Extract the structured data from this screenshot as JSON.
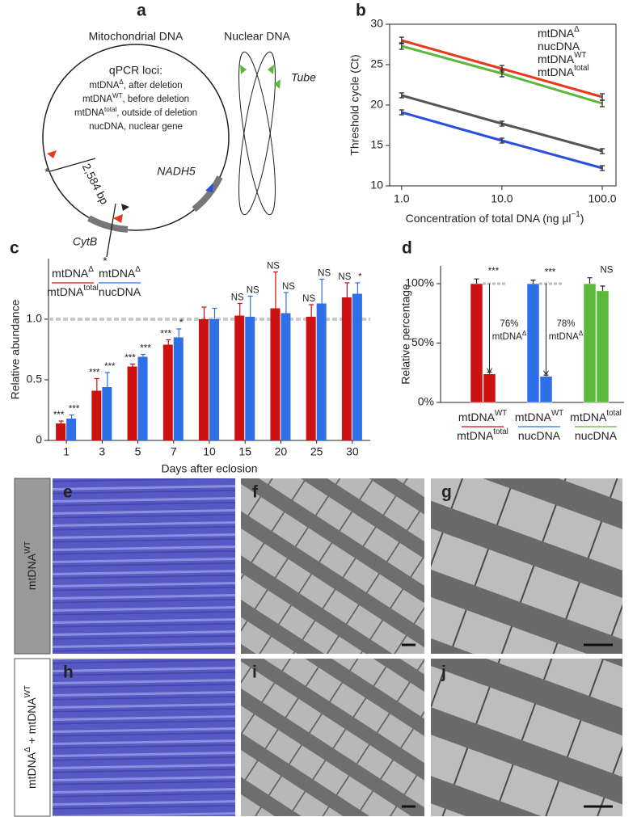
{
  "diagram": {
    "label": "a",
    "mito_title": "Mitochondrial DNA",
    "nuclear_title": "Nuclear DNA",
    "loci_title": "qPCR loci:",
    "loci": [
      {
        "base": "mtDNA",
        "sup": "Δ",
        "desc": ", after deletion",
        "color": "#e8381e"
      },
      {
        "base": "mtDNA",
        "sup": "WT",
        "desc": ", before deletion",
        "color": "#222222"
      },
      {
        "base": "mtDNA",
        "sup": "total",
        "desc": ", outside of deletion",
        "color": "#2a4fe0"
      },
      {
        "base": "nucDNA",
        "desc": ", nuclear gene",
        "color": "#5cb83a"
      }
    ],
    "deletion": "2,584 bp",
    "breakpoint": "*",
    "genes": [
      "CytB",
      "NADH5",
      "Tube"
    ]
  },
  "chart_data": [
    {
      "type": "line",
      "label": "b",
      "ylabel": "Threshold cycle (Ct)",
      "xlabel": {
        "base": "Concentration of total DNA (ng µl",
        "sup": "−1",
        "tail": ")"
      },
      "x": [
        1,
        10,
        100
      ],
      "xscale": "log",
      "xlim": [
        0.76,
        137
      ],
      "xticks": [
        {
          "value": 1,
          "label": "1.0"
        },
        {
          "value": 10,
          "label": "10.0"
        },
        {
          "value": 100,
          "label": "100.0"
        }
      ],
      "ylim": [
        10,
        30
      ],
      "yticks": [
        10,
        15,
        20,
        25,
        30
      ],
      "series": [
        {
          "name": "mtDNA",
          "name_sup": "Δ",
          "color": "#e8381e",
          "values": [
            28.0,
            24.5,
            21.0
          ],
          "errors": [
            0.4,
            0.4,
            0.4
          ]
        },
        {
          "name": "nucDNA",
          "color": "#5cb83a",
          "values": [
            27.3,
            23.9,
            20.2
          ],
          "errors": [
            0.4,
            0.4,
            0.4
          ]
        },
        {
          "name": "mtDNA",
          "name_sup": "WT",
          "color": "#555555",
          "values": [
            21.2,
            17.7,
            14.3
          ],
          "errors": [
            0.3,
            0.3,
            0.3
          ]
        },
        {
          "name": "mtDNA",
          "name_sup": "total",
          "color": "#2a4fe0",
          "values": [
            19.1,
            15.6,
            12.2
          ],
          "errors": [
            0.3,
            0.3,
            0.3
          ]
        }
      ]
    },
    {
      "type": "bar",
      "label": "c",
      "ylabel": "Relative abundance",
      "xlabel": "Days after eclosion",
      "categories": [
        "1",
        "3",
        "5",
        "7",
        "10",
        "15",
        "20",
        "25",
        "30"
      ],
      "ylim": [
        0,
        1.5
      ],
      "yticks": [
        0,
        0.5,
        {
          "value": 1,
          "label": "1.0"
        }
      ],
      "reference_line": 1,
      "series": [
        {
          "name": {
            "numerator": {
              "base": "mtDNA",
              "sup": "Δ"
            },
            "denominator": {
              "base": "mtDNA",
              "sup": "total"
            }
          },
          "color": "#cc1111",
          "values": [
            0.14,
            0.41,
            0.61,
            0.79,
            1.0,
            1.03,
            1.09,
            1.02,
            1.18
          ],
          "errors": [
            0.02,
            0.1,
            0.02,
            0.04,
            0.1,
            0.1,
            0.3,
            0.1,
            0.12
          ],
          "significance": [
            "***",
            "***",
            "***",
            "***",
            null,
            "NS",
            "NS",
            "NS",
            "NS"
          ]
        },
        {
          "name": {
            "numerator": {
              "base": "mtDNA",
              "sup": "Δ"
            },
            "denominator": {
              "base": "nucDNA"
            }
          },
          "color": "#2f6fe8",
          "values": [
            0.18,
            0.44,
            0.69,
            0.85,
            1.0,
            1.02,
            1.05,
            1.13,
            1.21
          ],
          "errors": [
            0.03,
            0.12,
            0.02,
            0.07,
            0.09,
            0.17,
            0.17,
            0.2,
            0.09
          ],
          "significance": [
            "***",
            "***",
            "***",
            "*",
            null,
            "NS",
            "NS",
            "NS",
            "*"
          ]
        }
      ]
    },
    {
      "type": "bar",
      "label": "d",
      "ylabel": "Relative percentage",
      "ylim": [
        0,
        115
      ],
      "yticks": [
        {
          "value": 0,
          "label": "0%"
        },
        {
          "value": 50,
          "label": "50%"
        },
        {
          "value": 100,
          "label": "100%"
        }
      ],
      "groups": [
        {
          "name": {
            "numerator": {
              "base": "mtDNA",
              "sup": "WT"
            },
            "denominator": {
              "base": "mtDNA",
              "sup": "total"
            }
          },
          "color": "#cc1111",
          "values": [
            100,
            24
          ],
          "errors": [
            4,
            1.5
          ],
          "significance": "***",
          "annotation": {
            "percent": "76%",
            "base": "mtDNA",
            "sup": "Δ"
          }
        },
        {
          "name": {
            "numerator": {
              "base": "mtDNA",
              "sup": "WT"
            },
            "denominator": {
              "base": "nucDNA"
            }
          },
          "color": "#2f6fe8",
          "values": [
            100,
            22
          ],
          "errors": [
            3,
            1
          ],
          "significance": "***",
          "annotation": {
            "percent": "78%",
            "base": "mtDNA",
            "sup": "Δ"
          }
        },
        {
          "name": {
            "numerator": {
              "base": "mtDNA",
              "sup": "total"
            },
            "denominator": {
              "base": "nucDNA"
            }
          },
          "color": "#5cb83a",
          "values": [
            100,
            94
          ],
          "errors": [
            5,
            4
          ],
          "significance": "NS"
        }
      ]
    }
  ],
  "micrographs": {
    "rows": [
      {
        "base": "mtDNA",
        "sup": "WT"
      },
      {
        "base": "mtDNA",
        "sup": "Δ",
        "joiner": " + ",
        "base2": "mtDNA",
        "sup2": "WT"
      }
    ],
    "panels": [
      "e",
      "f",
      "g",
      "h",
      "i",
      "j"
    ]
  }
}
